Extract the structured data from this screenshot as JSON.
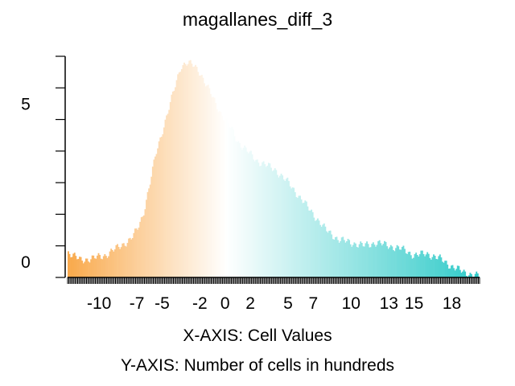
{
  "chart_data": {
    "type": "bar",
    "title": "magallanes_diff_3",
    "xlabel": "X-AXIS: Cell Values",
    "ylabel": "Y-AXIS: Number of cells in hundreds",
    "xlim": [
      -12.5,
      20.2
    ],
    "ylim": [
      0,
      7
    ],
    "x_ticks": [
      -10,
      -7,
      -5,
      -2,
      0,
      2,
      5,
      7,
      10,
      13,
      15,
      18
    ],
    "y_tick_labels": [
      0,
      5
    ],
    "y_minor_ticks": [
      0,
      1,
      2,
      3,
      4,
      5,
      6,
      7
    ],
    "color_ramp": {
      "low": "#f9a94b",
      "mid": "#ffffff",
      "high": "#2ecac8",
      "low_value": -12.5,
      "mid_value": 0.1,
      "high_value": 20.2
    },
    "series": [
      {
        "x": [
          -12.5,
          -11.5,
          -10.5,
          -9.5,
          -8.5,
          -7.5,
          -7.0,
          -6.5,
          -6.0,
          -5.5,
          -5.0,
          -4.5,
          -4.0,
          -3.5,
          -3.0,
          -2.5,
          -2.0,
          -1.5,
          -1.0,
          -0.5,
          0.0,
          0.5,
          1.0,
          1.5,
          2.0,
          2.5,
          3.0,
          3.5,
          4.0,
          5.0,
          6.0,
          7.0,
          8.0,
          9.0,
          10.0,
          11.0,
          12.0,
          13.0,
          14.0,
          15.0,
          16.0,
          17.0,
          18.0,
          19.0,
          20.0
        ],
        "values": [
          0.8,
          0.55,
          0.6,
          0.7,
          0.95,
          1.2,
          1.5,
          2.0,
          2.9,
          3.9,
          4.6,
          5.3,
          6.0,
          6.7,
          6.8,
          6.7,
          6.5,
          6.1,
          5.7,
          5.3,
          5.0,
          4.7,
          4.3,
          4.1,
          3.9,
          3.7,
          3.6,
          3.5,
          3.4,
          3.0,
          2.5,
          2.0,
          1.5,
          1.2,
          1.1,
          1.0,
          1.1,
          1.0,
          0.9,
          0.7,
          0.75,
          0.6,
          0.35,
          0.15,
          0.05
        ]
      }
    ]
  }
}
